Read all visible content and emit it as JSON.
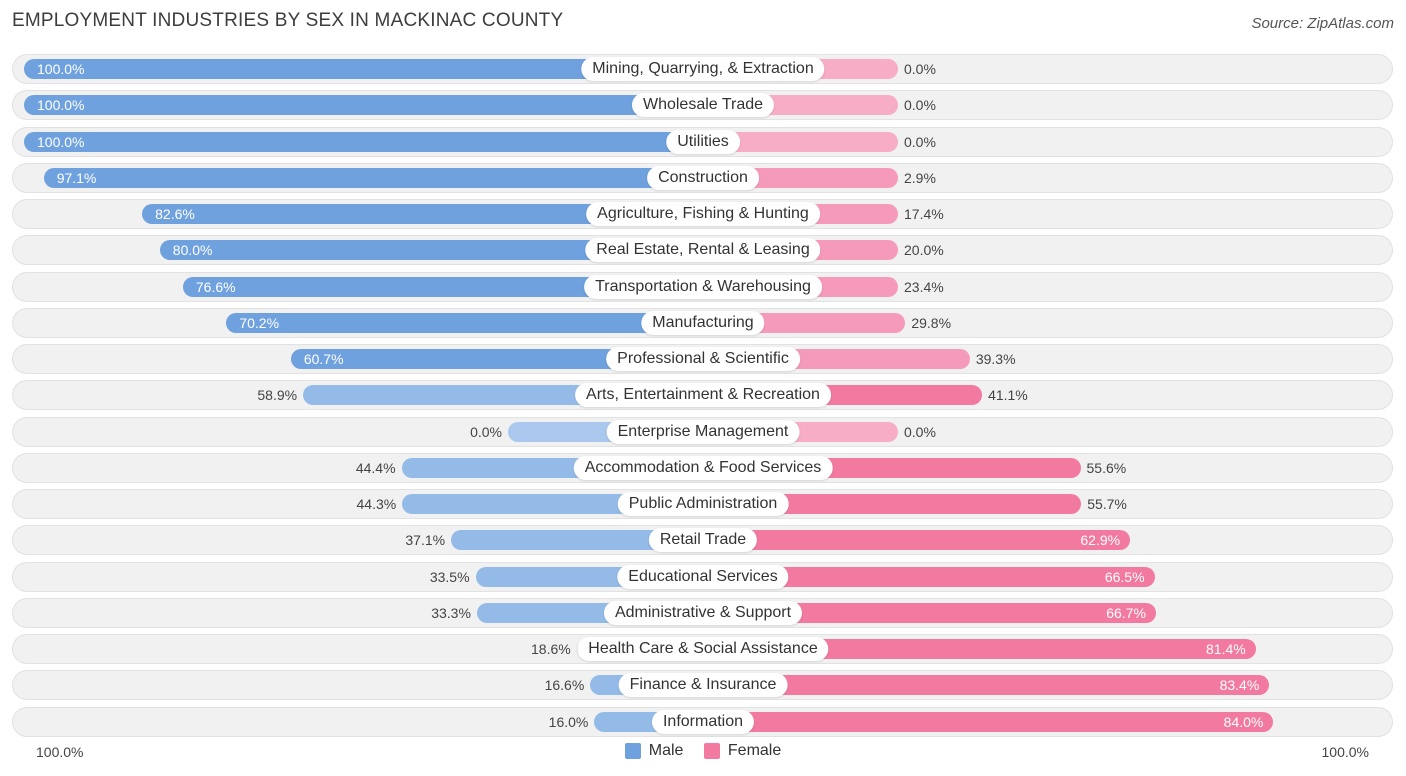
{
  "header": {
    "title": "EMPLOYMENT INDUSTRIES BY SEX IN MACKINAC COUNTY",
    "source": "Source: ZipAtlas.com"
  },
  "axis": {
    "left_label": "100.0%",
    "right_label": "100.0%"
  },
  "legend": {
    "male_label": "Male",
    "female_label": "Female"
  },
  "colors": {
    "male": "#6fa1de",
    "female": "#f27aa0",
    "male_light": "#aac8ee",
    "female_light": "#f6adc5"
  },
  "chart_data": {
    "type": "bar",
    "orientation": "horizontal-diverging",
    "categories": [
      "Mining, Quarrying, & Extraction",
      "Wholesale Trade",
      "Utilities",
      "Construction",
      "Agriculture, Fishing & Hunting",
      "Real Estate, Rental & Leasing",
      "Transportation & Warehousing",
      "Manufacturing",
      "Professional & Scientific",
      "Arts, Entertainment & Recreation",
      "Enterprise Management",
      "Accommodation & Food Services",
      "Public Administration",
      "Retail Trade",
      "Educational Services",
      "Administrative & Support",
      "Health Care & Social Assistance",
      "Finance & Insurance",
      "Information"
    ],
    "series": [
      {
        "name": "Male",
        "values": [
          100.0,
          100.0,
          100.0,
          97.1,
          82.6,
          80.0,
          76.6,
          70.2,
          60.7,
          58.9,
          0.0,
          44.4,
          44.3,
          37.1,
          33.5,
          33.3,
          18.6,
          16.6,
          16.0
        ]
      },
      {
        "name": "Female",
        "values": [
          0.0,
          0.0,
          0.0,
          2.9,
          17.4,
          20.0,
          23.4,
          29.8,
          39.3,
          41.1,
          0.0,
          55.6,
          55.7,
          62.9,
          66.5,
          66.7,
          81.4,
          83.4,
          84.0
        ]
      }
    ],
    "value_labels": {
      "male": [
        "100.0%",
        "100.0%",
        "100.0%",
        "97.1%",
        "82.6%",
        "80.0%",
        "76.6%",
        "70.2%",
        "60.7%",
        "58.9%",
        "0.0%",
        "44.4%",
        "44.3%",
        "37.1%",
        "33.5%",
        "33.3%",
        "18.6%",
        "16.6%",
        "16.0%"
      ],
      "female": [
        "0.0%",
        "0.0%",
        "0.0%",
        "2.9%",
        "17.4%",
        "20.0%",
        "23.4%",
        "29.8%",
        "39.3%",
        "41.1%",
        "0.0%",
        "55.6%",
        "55.7%",
        "62.9%",
        "66.5%",
        "66.7%",
        "81.4%",
        "83.4%",
        "84.0%"
      ]
    },
    "xlim": [
      -100,
      100
    ],
    "legend_position": "bottom-center"
  }
}
